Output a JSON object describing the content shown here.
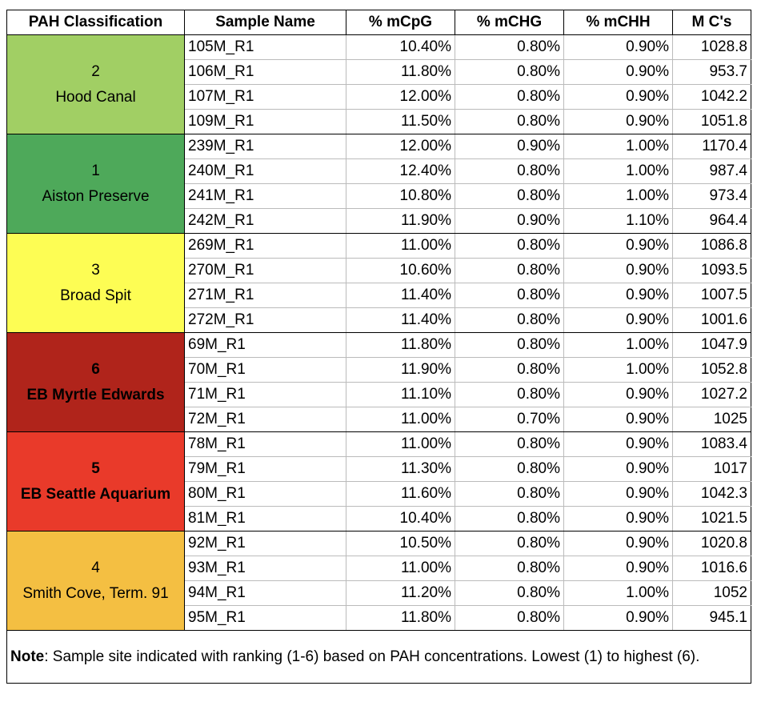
{
  "header": [
    "PAH Classification",
    "Sample Name",
    "% mCpG",
    "% mCHG",
    "% mCHH",
    "M C's"
  ],
  "groups": [
    {
      "rank": "2",
      "site": "Hood Canal",
      "color": "#a1cf64",
      "rows": [
        [
          "105M_R1",
          "10.40%",
          "0.80%",
          "0.90%",
          "1028.8"
        ],
        [
          "106M_R1",
          "11.80%",
          "0.80%",
          "0.90%",
          "953.7"
        ],
        [
          "107M_R1",
          "12.00%",
          "0.80%",
          "0.90%",
          "1042.2"
        ],
        [
          "109M_R1",
          "11.50%",
          "0.80%",
          "0.90%",
          "1051.8"
        ]
      ]
    },
    {
      "rank": "1",
      "site": "Aiston Preserve",
      "color": "#4ea95a",
      "rows": [
        [
          "239M_R1",
          "12.00%",
          "0.90%",
          "1.00%",
          "1170.4"
        ],
        [
          "240M_R1",
          "12.40%",
          "0.80%",
          "1.00%",
          "987.4"
        ],
        [
          "241M_R1",
          "10.80%",
          "0.80%",
          "1.00%",
          "973.4"
        ],
        [
          "242M_R1",
          "11.90%",
          "0.90%",
          "1.10%",
          "964.4"
        ]
      ]
    },
    {
      "rank": "3",
      "site": "Broad Spit",
      "color": "#fdfd54",
      "rows": [
        [
          "269M_R1",
          "11.00%",
          "0.80%",
          "0.90%",
          "1086.8"
        ],
        [
          "270M_R1",
          "10.60%",
          "0.80%",
          "0.90%",
          "1093.5"
        ],
        [
          "271M_R1",
          "11.40%",
          "0.80%",
          "0.90%",
          "1007.5"
        ],
        [
          "272M_R1",
          "11.40%",
          "0.80%",
          "0.90%",
          "1001.6"
        ]
      ]
    },
    {
      "rank": "6",
      "site": "EB Myrtle Edwards",
      "color": "#b0241b",
      "rows": [
        [
          "69M_R1",
          "11.80%",
          "0.80%",
          "1.00%",
          "1047.9"
        ],
        [
          "70M_R1",
          "11.90%",
          "0.80%",
          "1.00%",
          "1052.8"
        ],
        [
          "71M_R1",
          "11.10%",
          "0.80%",
          "0.90%",
          "1027.2"
        ],
        [
          "72M_R1",
          "11.00%",
          "0.70%",
          "0.90%",
          "1025"
        ]
      ]
    },
    {
      "rank": "5",
      "site": "EB Seattle Aquarium",
      "color": "#e93a2a",
      "rows": [
        [
          "78M_R1",
          "11.00%",
          "0.80%",
          "0.90%",
          "1083.4"
        ],
        [
          "79M_R1",
          "11.30%",
          "0.80%",
          "0.90%",
          "1017"
        ],
        [
          "80M_R1",
          "11.60%",
          "0.80%",
          "0.90%",
          "1042.3"
        ],
        [
          "81M_R1",
          "10.40%",
          "0.80%",
          "0.90%",
          "1021.5"
        ]
      ]
    },
    {
      "rank": "4",
      "site": "Smith Cove, Term. 91",
      "color": "#f4bf42",
      "rows": [
        [
          "92M_R1",
          "10.50%",
          "0.80%",
          "0.90%",
          "1020.8"
        ],
        [
          "93M_R1",
          "11.00%",
          "0.80%",
          "0.90%",
          "1016.6"
        ],
        [
          "94M_R1",
          "11.20%",
          "0.80%",
          "1.00%",
          "1052"
        ],
        [
          "95M_R1",
          "11.80%",
          "0.80%",
          "0.90%",
          "945.1"
        ]
      ]
    }
  ],
  "note": {
    "label": "Note",
    "text": ": Sample site indicated with ranking (1-6) based on PAH concentrations. Lowest (1) to highest (6)."
  }
}
